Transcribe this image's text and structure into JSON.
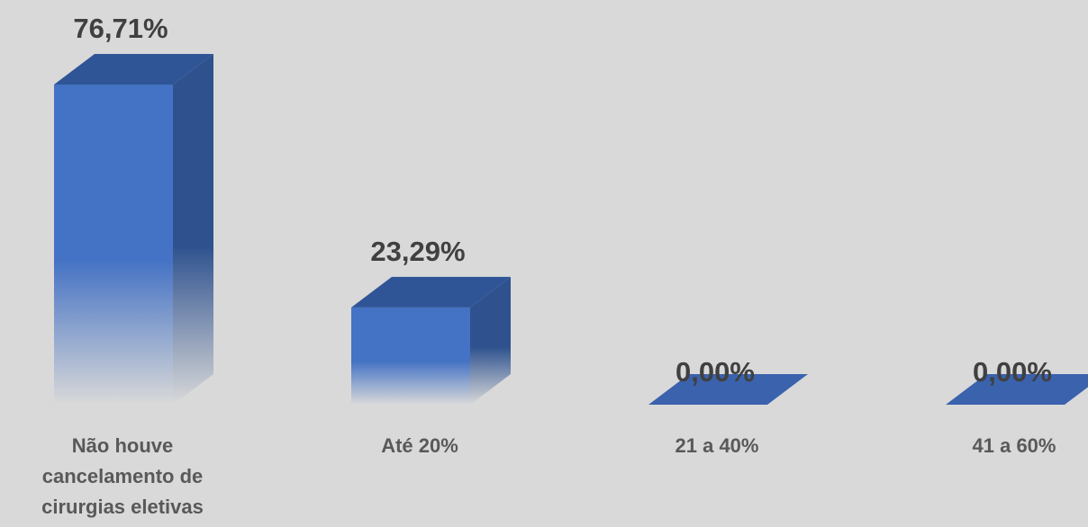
{
  "chart_data": {
    "type": "bar3d",
    "categories": [
      "Não houve cancelamento de cirurgias eletivas",
      "Até 20%",
      "21 a 40%",
      "41 a 60%"
    ],
    "values": [
      76.71,
      23.29,
      0,
      0
    ],
    "value_labels": [
      "76,71%",
      "23,29%",
      "0,00%",
      "0,00%"
    ],
    "color": "#4472c4"
  }
}
